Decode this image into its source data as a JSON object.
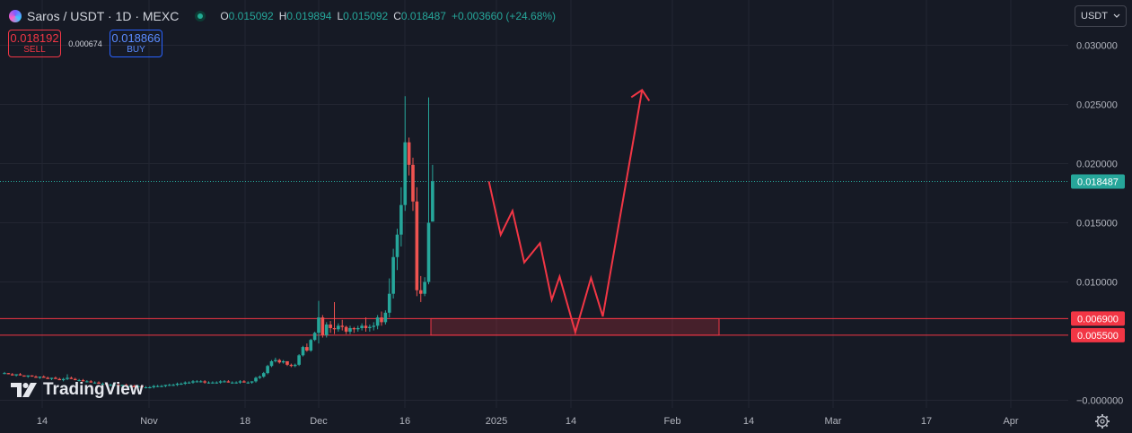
{
  "header": {
    "symbol": "Saros / USDT · 1D · MEXC",
    "ohlc": [
      {
        "label": "O",
        "value": "0.015092"
      },
      {
        "label": "H",
        "value": "0.019894"
      },
      {
        "label": "L",
        "value": "0.015092"
      },
      {
        "label": "C",
        "value": "0.018487"
      }
    ],
    "change": "+0.003660 (+24.68%)"
  },
  "trade": {
    "sell_price": "0.018192",
    "sell_label": "SELL",
    "spread": "0.000674",
    "buy_price": "0.018866",
    "buy_label": "BUY"
  },
  "currency": {
    "label": "USDT"
  },
  "price_axis": {
    "ticks": [
      "0.030000",
      "0.025000",
      "0.020000",
      "0.015000",
      "0.010000",
      "−0.000000"
    ],
    "tick_values": [
      0.03,
      0.025,
      0.02,
      0.015,
      0.01,
      0
    ],
    "last_price": "0.018487",
    "zone_top_label": "0.006900",
    "zone_bottom_label": "0.005500"
  },
  "time_axis": {
    "labels": [
      "14",
      "Nov",
      "18",
      "Dec",
      "16",
      "2025",
      "14",
      "Feb",
      "14",
      "Mar",
      "17",
      "Apr"
    ]
  },
  "logo": {
    "text": "TradingView"
  },
  "colors": {
    "up": "#26a69a",
    "down": "#ef5350",
    "annot": "#f23645",
    "last_price": "#26a69a",
    "background": "#161a25"
  },
  "chart_data": {
    "type": "candlestick",
    "unit": "USDT",
    "zone": {
      "top": 0.0069,
      "bottom": 0.0055
    },
    "last_price": 0.018487,
    "candles": [
      [
        0.0023,
        0.0024,
        0.0022,
        0.0023
      ],
      [
        0.0023,
        0.0023,
        0.0022,
        0.0022
      ],
      [
        0.0022,
        0.0023,
        0.0021,
        0.0021
      ],
      [
        0.0021,
        0.0022,
        0.002,
        0.0022
      ],
      [
        0.0022,
        0.0023,
        0.0021,
        0.0021
      ],
      [
        0.0021,
        0.0021,
        0.002,
        0.002
      ],
      [
        0.002,
        0.0021,
        0.0019,
        0.0021
      ],
      [
        0.0021,
        0.0021,
        0.002,
        0.002
      ],
      [
        0.002,
        0.0021,
        0.0019,
        0.0019
      ],
      [
        0.0019,
        0.002,
        0.0018,
        0.002
      ],
      [
        0.002,
        0.0021,
        0.0019,
        0.0019
      ],
      [
        0.0019,
        0.002,
        0.0018,
        0.0018
      ],
      [
        0.0018,
        0.0019,
        0.0017,
        0.0019
      ],
      [
        0.0019,
        0.002,
        0.0018,
        0.0018
      ],
      [
        0.0018,
        0.0019,
        0.0017,
        0.0017
      ],
      [
        0.0017,
        0.0019,
        0.0016,
        0.0018
      ],
      [
        0.0018,
        0.0022,
        0.0017,
        0.0019
      ],
      [
        0.0019,
        0.002,
        0.0018,
        0.0018
      ],
      [
        0.0018,
        0.0019,
        0.0017,
        0.0017
      ],
      [
        0.0017,
        0.0018,
        0.0016,
        0.0017
      ],
      [
        0.0017,
        0.0018,
        0.0016,
        0.0016
      ],
      [
        0.0016,
        0.0017,
        0.0015,
        0.0016
      ],
      [
        0.0016,
        0.0017,
        0.0015,
        0.0015
      ],
      [
        0.0015,
        0.0016,
        0.0014,
        0.0015
      ],
      [
        0.0015,
        0.0016,
        0.0014,
        0.0014
      ],
      [
        0.0014,
        0.0015,
        0.0013,
        0.0014
      ],
      [
        0.0014,
        0.0015,
        0.0013,
        0.0013
      ],
      [
        0.0013,
        0.0014,
        0.0012,
        0.0013
      ],
      [
        0.0013,
        0.0014,
        0.0012,
        0.0013
      ],
      [
        0.0013,
        0.0014,
        0.0012,
        0.0012
      ],
      [
        0.0012,
        0.0013,
        0.0011,
        0.0013
      ],
      [
        0.0013,
        0.0014,
        0.0012,
        0.0012
      ],
      [
        0.0012,
        0.0013,
        0.0011,
        0.0012
      ],
      [
        0.0012,
        0.0013,
        0.0011,
        0.0011
      ],
      [
        0.0011,
        0.0013,
        0.001,
        0.0012
      ],
      [
        0.0012,
        0.0013,
        0.0011,
        0.0011
      ],
      [
        0.0011,
        0.0012,
        0.001,
        0.0011
      ],
      [
        0.0011,
        0.0012,
        0.001,
        0.0011
      ],
      [
        0.0011,
        0.0013,
        0.001,
        0.0012
      ],
      [
        0.0012,
        0.0013,
        0.0011,
        0.0012
      ],
      [
        0.0012,
        0.0013,
        0.0011,
        0.0012
      ],
      [
        0.0012,
        0.0013,
        0.0011,
        0.0013
      ],
      [
        0.0013,
        0.0014,
        0.0012,
        0.0013
      ],
      [
        0.0013,
        0.0014,
        0.0012,
        0.0013
      ],
      [
        0.0013,
        0.0015,
        0.0012,
        0.0014
      ],
      [
        0.0014,
        0.0015,
        0.0013,
        0.0014
      ],
      [
        0.0014,
        0.0016,
        0.0013,
        0.0015
      ],
      [
        0.0015,
        0.0016,
        0.0014,
        0.0015
      ],
      [
        0.0015,
        0.0017,
        0.0014,
        0.0016
      ],
      [
        0.0016,
        0.0017,
        0.0015,
        0.0016
      ],
      [
        0.0016,
        0.0017,
        0.0015,
        0.0016
      ],
      [
        0.0016,
        0.0017,
        0.0014,
        0.0015
      ],
      [
        0.0015,
        0.0016,
        0.0014,
        0.0015
      ],
      [
        0.0015,
        0.0016,
        0.0014,
        0.0015
      ],
      [
        0.0015,
        0.0016,
        0.0014,
        0.0015
      ],
      [
        0.0015,
        0.0017,
        0.0014,
        0.0016
      ],
      [
        0.0016,
        0.0017,
        0.0015,
        0.0016
      ],
      [
        0.0016,
        0.0017,
        0.0015,
        0.0015
      ],
      [
        0.0015,
        0.0016,
        0.0014,
        0.0015
      ],
      [
        0.0015,
        0.0016,
        0.0014,
        0.0015
      ],
      [
        0.0015,
        0.0017,
        0.0014,
        0.0016
      ],
      [
        0.0016,
        0.0017,
        0.0015,
        0.0015
      ],
      [
        0.0015,
        0.0016,
        0.0014,
        0.0015
      ],
      [
        0.0015,
        0.0016,
        0.0014,
        0.0016
      ],
      [
        0.0016,
        0.002,
        0.0015,
        0.0019
      ],
      [
        0.0019,
        0.0021,
        0.0018,
        0.002
      ],
      [
        0.002,
        0.0024,
        0.0019,
        0.0023
      ],
      [
        0.0023,
        0.003,
        0.0022,
        0.0029
      ],
      [
        0.0029,
        0.0034,
        0.0028,
        0.0033
      ],
      [
        0.0033,
        0.0036,
        0.0032,
        0.0034
      ],
      [
        0.0034,
        0.0035,
        0.0031,
        0.0032
      ],
      [
        0.0032,
        0.0034,
        0.0031,
        0.0033
      ],
      [
        0.0033,
        0.0033,
        0.0029,
        0.003
      ],
      [
        0.003,
        0.0031,
        0.0028,
        0.0029
      ],
      [
        0.0029,
        0.0031,
        0.0028,
        0.003
      ],
      [
        0.003,
        0.0039,
        0.0029,
        0.0038
      ],
      [
        0.0038,
        0.0046,
        0.0037,
        0.0045
      ],
      [
        0.0045,
        0.0048,
        0.0041,
        0.0042
      ],
      [
        0.0042,
        0.0052,
        0.0041,
        0.0051
      ],
      [
        0.0051,
        0.0058,
        0.005,
        0.0057
      ],
      [
        0.0057,
        0.0084,
        0.0048,
        0.007
      ],
      [
        0.007,
        0.0072,
        0.0053,
        0.0055
      ],
      [
        0.0055,
        0.0066,
        0.0053,
        0.0064
      ],
      [
        0.0064,
        0.0067,
        0.0057,
        0.0061
      ],
      [
        0.0061,
        0.0083,
        0.0056,
        0.006
      ],
      [
        0.006,
        0.0065,
        0.0058,
        0.0063
      ],
      [
        0.0063,
        0.0068,
        0.0059,
        0.0062
      ],
      [
        0.0062,
        0.0063,
        0.0056,
        0.0058
      ],
      [
        0.0058,
        0.0063,
        0.0056,
        0.0061
      ],
      [
        0.0061,
        0.0062,
        0.0057,
        0.006
      ],
      [
        0.006,
        0.0063,
        0.0058,
        0.0061
      ],
      [
        0.0061,
        0.0065,
        0.0059,
        0.0063
      ],
      [
        0.0063,
        0.007,
        0.0058,
        0.0061
      ],
      [
        0.0061,
        0.0064,
        0.0058,
        0.0062
      ],
      [
        0.0062,
        0.0066,
        0.0059,
        0.0063
      ],
      [
        0.0063,
        0.0072,
        0.006,
        0.007
      ],
      [
        0.007,
        0.0075,
        0.0063,
        0.0066
      ],
      [
        0.0066,
        0.0076,
        0.0064,
        0.0074
      ],
      [
        0.0074,
        0.0103,
        0.007,
        0.009
      ],
      [
        0.009,
        0.0128,
        0.0086,
        0.0121
      ],
      [
        0.0121,
        0.0145,
        0.011,
        0.014
      ],
      [
        0.014,
        0.018,
        0.013,
        0.0165
      ],
      [
        0.0165,
        0.0257,
        0.016,
        0.0218
      ],
      [
        0.0218,
        0.0222,
        0.019,
        0.0199
      ],
      [
        0.0199,
        0.0205,
        0.016,
        0.0168
      ],
      [
        0.0168,
        0.018,
        0.0088,
        0.0093
      ],
      [
        0.0093,
        0.0105,
        0.0083,
        0.009
      ],
      [
        0.009,
        0.0104,
        0.0088,
        0.01
      ],
      [
        0.01,
        0.0256,
        0.0098,
        0.015
      ],
      [
        0.0151,
        0.0199,
        0.0151,
        0.0185
      ]
    ],
    "projection": [
      [
        "2024-12-31",
        0.01849
      ],
      [
        "2025-01-03",
        0.01399
      ],
      [
        "2025-01-06",
        0.01601
      ],
      [
        "2025-01-09",
        0.01165
      ],
      [
        "2025-01-13",
        0.01328
      ],
      [
        "2025-01-16",
        0.00849
      ],
      [
        "2025-01-18",
        0.01045
      ],
      [
        "2025-01-22",
        0.00575
      ],
      [
        "2025-01-26",
        0.01034
      ],
      [
        "2025-01-29",
        0.00709
      ],
      [
        "2025-02-08",
        0.02622
      ]
    ],
    "projection_arrow": "arrowhead at the last projection point"
  }
}
